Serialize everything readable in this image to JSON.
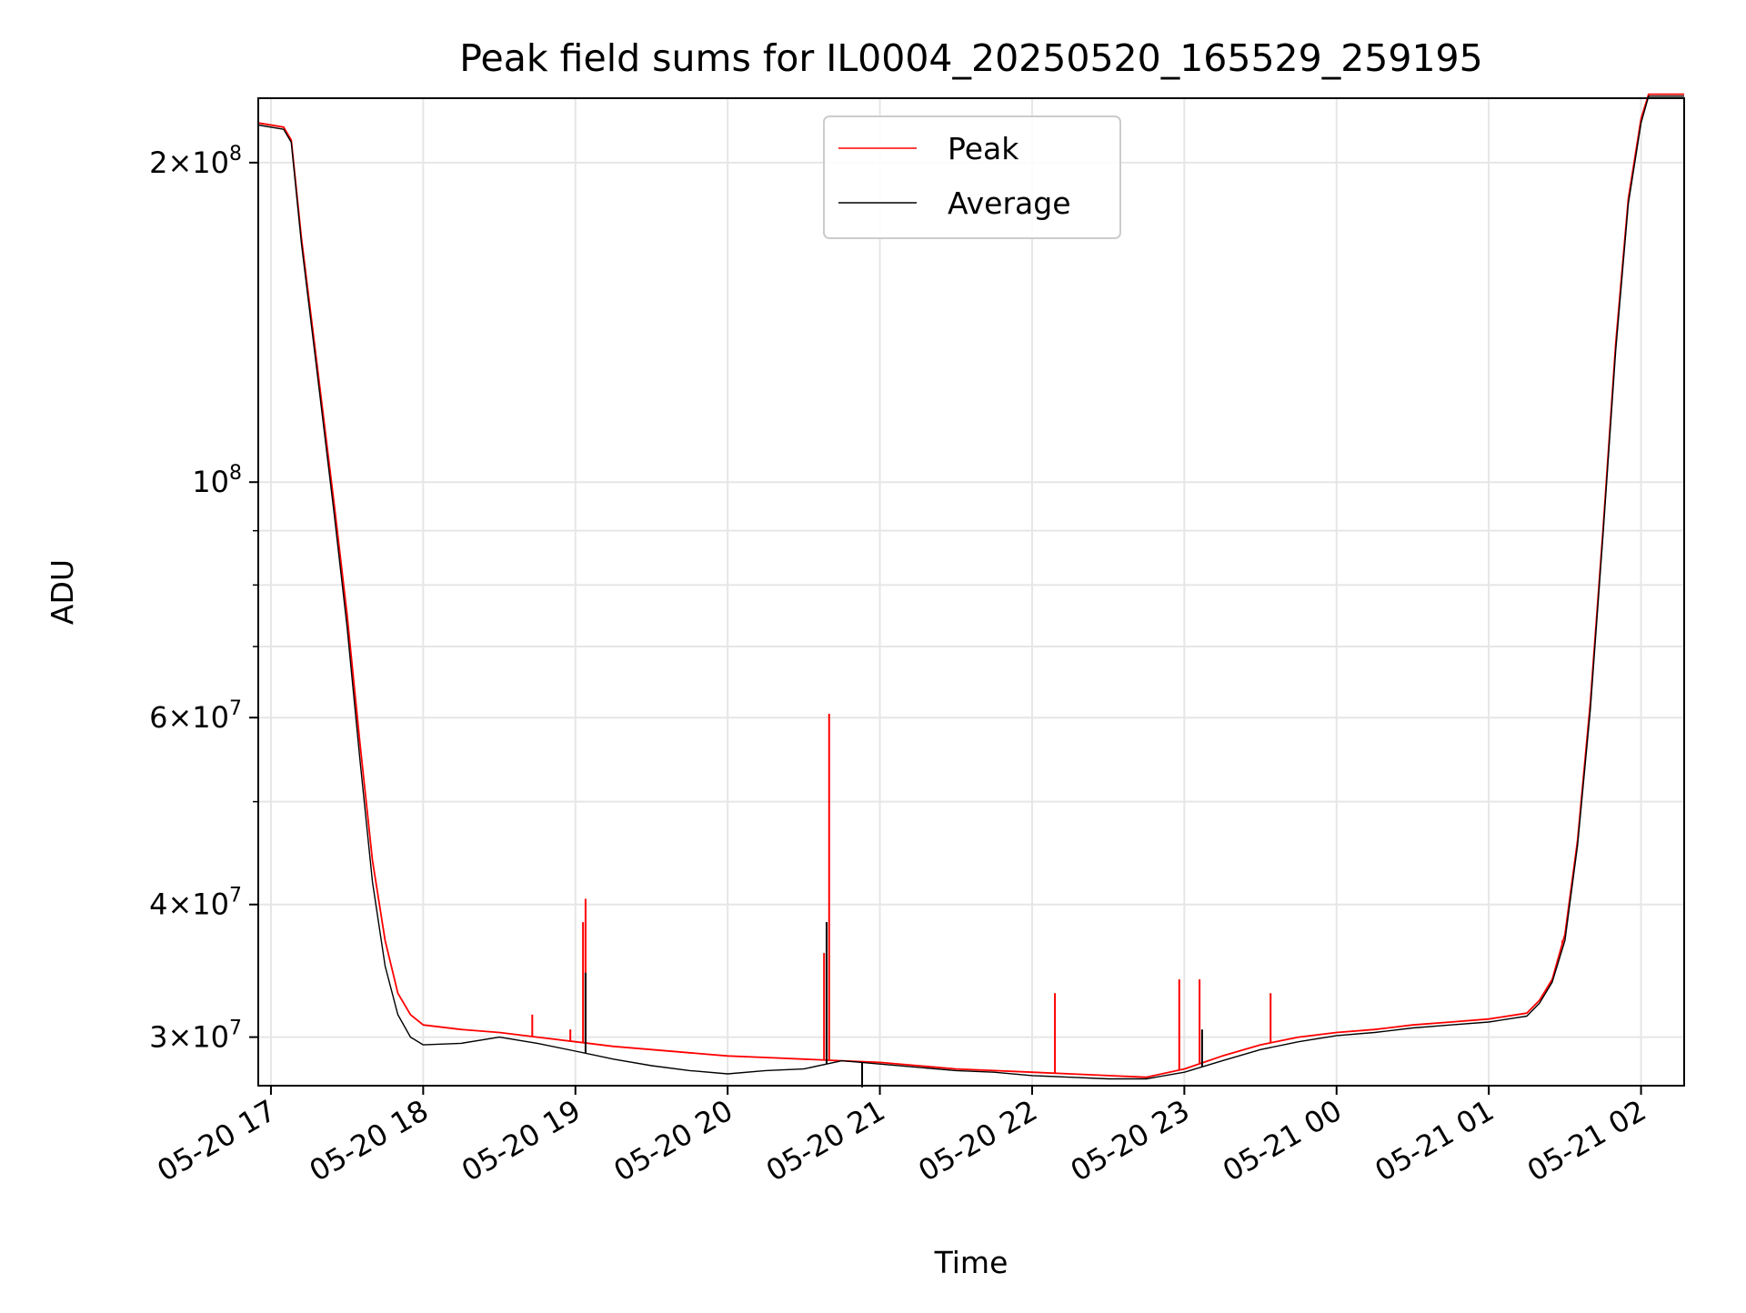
{
  "chart_data": {
    "type": "line",
    "title": "Peak field sums for IL0004_20250520_165529_259195",
    "xlabel": "Time",
    "ylabel": "ADU",
    "yscale": "log",
    "ylim": [
      27000000,
      230000000
    ],
    "xlim": [
      "2025-05-20 16:55",
      "2025-05-21 02:17"
    ],
    "grid": true,
    "legend_position": "upper center",
    "x_ticks": [
      "05-20 17",
      "05-20 18",
      "05-20 19",
      "05-20 20",
      "05-20 21",
      "05-20 22",
      "05-20 23",
      "05-21 00",
      "05-21 01",
      "05-21 02"
    ],
    "y_ticks": [
      {
        "value": 30000000,
        "mant": "3",
        "exp": "7"
      },
      {
        "value": 40000000,
        "mant": "4",
        "exp": "7"
      },
      {
        "value": 60000000,
        "mant": "6",
        "exp": "7"
      },
      {
        "value": 100000000,
        "mant": "",
        "exp": "8"
      },
      {
        "value": 200000000,
        "mant": "2",
        "exp": "8"
      }
    ],
    "series": [
      {
        "name": "Peak",
        "color": "#ff0000",
        "points": [
          [
            "2025-05-20 16:55",
            218000000
          ],
          [
            "2025-05-20 17:05",
            216000000
          ],
          [
            "2025-05-20 17:08",
            210000000
          ],
          [
            "2025-05-20 17:12",
            170000000
          ],
          [
            "2025-05-20 17:18",
            130000000
          ],
          [
            "2025-05-20 17:25",
            95000000
          ],
          [
            "2025-05-20 17:30",
            75000000
          ],
          [
            "2025-05-20 17:35",
            57000000
          ],
          [
            "2025-05-20 17:40",
            44000000
          ],
          [
            "2025-05-20 17:45",
            37000000
          ],
          [
            "2025-05-20 17:50",
            33000000
          ],
          [
            "2025-05-20 17:55",
            31500000
          ],
          [
            "2025-05-20 18:00",
            30800000
          ],
          [
            "2025-05-20 18:15",
            30500000
          ],
          [
            "2025-05-20 18:30",
            30300000
          ],
          [
            "2025-05-20 18:45",
            30000000
          ],
          [
            "2025-05-20 19:00",
            29700000
          ],
          [
            "2025-05-20 19:15",
            29400000
          ],
          [
            "2025-05-20 19:30",
            29200000
          ],
          [
            "2025-05-20 19:45",
            29000000
          ],
          [
            "2025-05-20 20:00",
            28800000
          ],
          [
            "2025-05-20 20:15",
            28700000
          ],
          [
            "2025-05-20 20:30",
            28600000
          ],
          [
            "2025-05-20 20:45",
            28500000
          ],
          [
            "2025-05-20 21:00",
            28400000
          ],
          [
            "2025-05-20 21:15",
            28200000
          ],
          [
            "2025-05-20 21:30",
            28000000
          ],
          [
            "2025-05-20 21:45",
            27900000
          ],
          [
            "2025-05-20 22:00",
            27800000
          ],
          [
            "2025-05-20 22:15",
            27700000
          ],
          [
            "2025-05-20 22:30",
            27600000
          ],
          [
            "2025-05-20 22:45",
            27500000
          ],
          [
            "2025-05-20 23:00",
            28000000
          ],
          [
            "2025-05-20 23:15",
            28800000
          ],
          [
            "2025-05-20 23:30",
            29500000
          ],
          [
            "2025-05-20 23:45",
            30000000
          ],
          [
            "2025-05-21 00:00",
            30300000
          ],
          [
            "2025-05-21 00:15",
            30500000
          ],
          [
            "2025-05-21 00:30",
            30800000
          ],
          [
            "2025-05-21 00:45",
            31000000
          ],
          [
            "2025-05-21 01:00",
            31200000
          ],
          [
            "2025-05-21 01:15",
            31600000
          ],
          [
            "2025-05-21 01:20",
            32500000
          ],
          [
            "2025-05-21 01:25",
            34000000
          ],
          [
            "2025-05-21 01:30",
            37500000
          ],
          [
            "2025-05-21 01:35",
            46000000
          ],
          [
            "2025-05-21 01:40",
            62000000
          ],
          [
            "2025-05-21 01:45",
            90000000
          ],
          [
            "2025-05-21 01:50",
            135000000
          ],
          [
            "2025-05-21 01:55",
            185000000
          ],
          [
            "2025-05-21 02:00",
            220000000
          ],
          [
            "2025-05-21 02:03",
            232000000
          ],
          [
            "2025-05-21 02:17",
            232000000
          ]
        ],
        "spikes": [
          [
            "2025-05-20 18:43",
            31500000
          ],
          [
            "2025-05-20 18:58",
            30500000
          ],
          [
            "2025-05-20 19:03",
            38500000
          ],
          [
            "2025-05-20 19:04",
            40500000
          ],
          [
            "2025-05-20 20:38",
            36000000
          ],
          [
            "2025-05-20 20:40",
            60500000
          ],
          [
            "2025-05-20 22:09",
            33000000
          ],
          [
            "2025-05-20 22:58",
            34000000
          ],
          [
            "2025-05-20 23:06",
            34000000
          ],
          [
            "2025-05-20 23:34",
            33000000
          ],
          [
            "2025-05-21 01:29",
            37000000
          ]
        ]
      },
      {
        "name": "Average",
        "color": "#000000",
        "points": [
          [
            "2025-05-20 16:55",
            217000000
          ],
          [
            "2025-05-20 17:05",
            215000000
          ],
          [
            "2025-05-20 17:08",
            209000000
          ],
          [
            "2025-05-20 17:12",
            168000000
          ],
          [
            "2025-05-20 17:18",
            128000000
          ],
          [
            "2025-05-20 17:25",
            93000000
          ],
          [
            "2025-05-20 17:30",
            73000000
          ],
          [
            "2025-05-20 17:35",
            55000000
          ],
          [
            "2025-05-20 17:40",
            42000000
          ],
          [
            "2025-05-20 17:45",
            35000000
          ],
          [
            "2025-05-20 17:50",
            31500000
          ],
          [
            "2025-05-20 17:55",
            30000000
          ],
          [
            "2025-05-20 18:00",
            29500000
          ],
          [
            "2025-05-20 18:15",
            29600000
          ],
          [
            "2025-05-20 18:30",
            30000000
          ],
          [
            "2025-05-20 18:45",
            29600000
          ],
          [
            "2025-05-20 19:00",
            29100000
          ],
          [
            "2025-05-20 19:15",
            28600000
          ],
          [
            "2025-05-20 19:30",
            28200000
          ],
          [
            "2025-05-20 19:45",
            27900000
          ],
          [
            "2025-05-20 20:00",
            27700000
          ],
          [
            "2025-05-20 20:15",
            27900000
          ],
          [
            "2025-05-20 20:30",
            28000000
          ],
          [
            "2025-05-20 20:45",
            28500000
          ],
          [
            "2025-05-20 21:00",
            28300000
          ],
          [
            "2025-05-20 21:15",
            28100000
          ],
          [
            "2025-05-20 21:30",
            27900000
          ],
          [
            "2025-05-20 21:45",
            27800000
          ],
          [
            "2025-05-20 22:00",
            27600000
          ],
          [
            "2025-05-20 22:15",
            27500000
          ],
          [
            "2025-05-20 22:30",
            27400000
          ],
          [
            "2025-05-20 22:45",
            27400000
          ],
          [
            "2025-05-20 23:00",
            27800000
          ],
          [
            "2025-05-20 23:15",
            28500000
          ],
          [
            "2025-05-20 23:30",
            29200000
          ],
          [
            "2025-05-20 23:45",
            29700000
          ],
          [
            "2025-05-21 00:00",
            30100000
          ],
          [
            "2025-05-21 00:15",
            30300000
          ],
          [
            "2025-05-21 00:30",
            30600000
          ],
          [
            "2025-05-21 00:45",
            30800000
          ],
          [
            "2025-05-21 01:00",
            31000000
          ],
          [
            "2025-05-21 01:15",
            31400000
          ],
          [
            "2025-05-21 01:20",
            32300000
          ],
          [
            "2025-05-21 01:25",
            33800000
          ],
          [
            "2025-05-21 01:30",
            37000000
          ],
          [
            "2025-05-21 01:35",
            45500000
          ],
          [
            "2025-05-21 01:40",
            61000000
          ],
          [
            "2025-05-21 01:45",
            89000000
          ],
          [
            "2025-05-21 01:50",
            133000000
          ],
          [
            "2025-05-21 01:55",
            183000000
          ],
          [
            "2025-05-21 02:00",
            218000000
          ],
          [
            "2025-05-21 02:03",
            231000000
          ],
          [
            "2025-05-21 02:17",
            231000000
          ]
        ],
        "spikes": [
          [
            "2025-05-20 19:04",
            34500000
          ],
          [
            "2025-05-20 20:39",
            38500000
          ],
          [
            "2025-05-20 20:53",
            26900000
          ],
          [
            "2025-05-20 23:07",
            30500000
          ]
        ]
      }
    ]
  }
}
